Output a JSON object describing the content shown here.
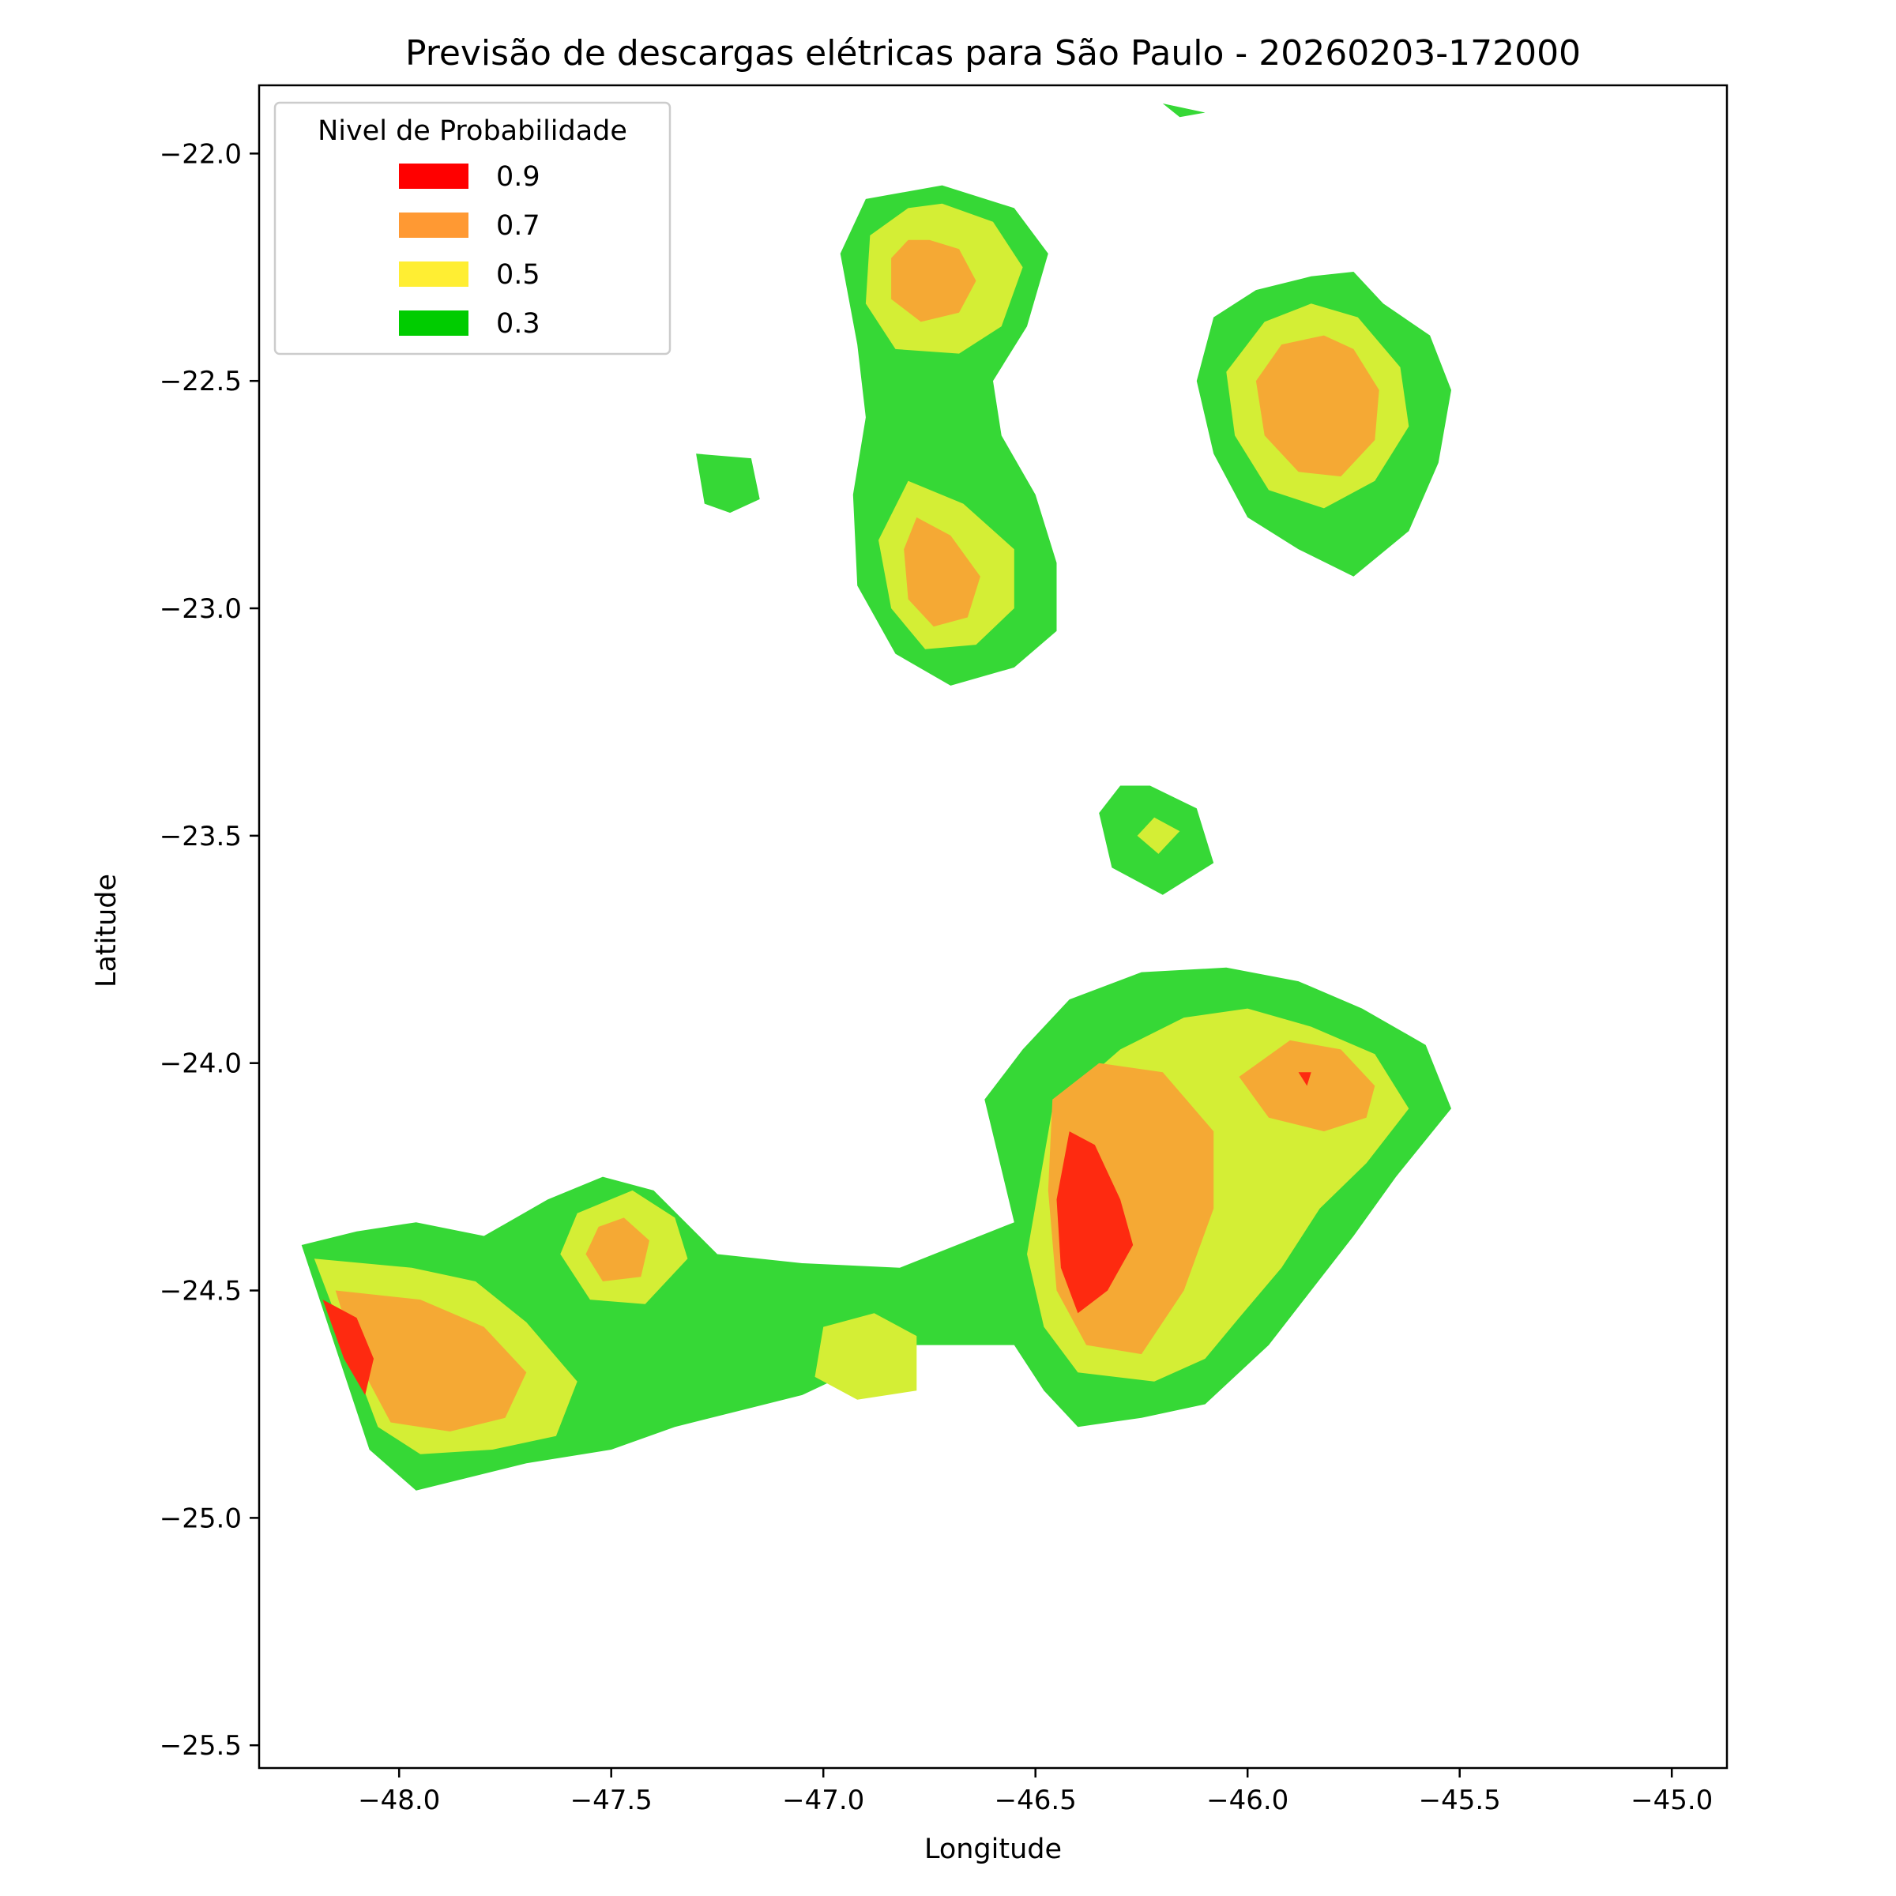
{
  "chart_data": {
    "type": "contour",
    "title": "Previsão de descargas elétricas para São Paulo - 20260203-172000",
    "xlabel": "Longitude",
    "ylabel": "Latitude",
    "xlim": [
      -48.33,
      -44.87
    ],
    "ylim": [
      -25.55,
      -21.85
    ],
    "xticks": [
      -48.0,
      -47.5,
      -47.0,
      -46.5,
      -46.0,
      -45.5,
      -45.0
    ],
    "yticks": [
      -22.0,
      -22.5,
      -23.0,
      -23.5,
      -24.0,
      -24.5,
      -25.0,
      -25.5
    ],
    "xtick_labels": [
      "−48.0",
      "−47.5",
      "−47.0",
      "−46.5",
      "−46.0",
      "−45.5",
      "−45.0"
    ],
    "ytick_labels": [
      "−22.0",
      "−22.5",
      "−23.0",
      "−23.5",
      "−24.0",
      "−24.5",
      "−25.0",
      "−25.5"
    ],
    "grid": false,
    "legend": {
      "title": "Nivel de Probabilidade",
      "placement": "top-left",
      "entries": [
        {
          "label": "0.9",
          "color": "#ff0000"
        },
        {
          "label": "0.7",
          "color": "#ff9933"
        },
        {
          "label": "0.5",
          "color": "#ffee33"
        },
        {
          "label": "0.3",
          "color": "#00cc00"
        }
      ]
    },
    "fill_colors": {
      "0.3": "#36d836",
      "0.5": "#d4ee35",
      "0.7": "#f5a934",
      "0.9": "#fe2a10"
    },
    "regions": [
      {
        "level": "0.3",
        "points": [
          [
            -46.72,
            -22.07
          ],
          [
            -46.55,
            -22.12
          ],
          [
            -46.47,
            -22.22
          ],
          [
            -46.52,
            -22.38
          ],
          [
            -46.6,
            -22.5
          ],
          [
            -46.58,
            -22.62
          ],
          [
            -46.5,
            -22.75
          ],
          [
            -46.45,
            -22.9
          ],
          [
            -46.45,
            -23.05
          ],
          [
            -46.55,
            -23.13
          ],
          [
            -46.7,
            -23.17
          ],
          [
            -46.83,
            -23.1
          ],
          [
            -46.92,
            -22.95
          ],
          [
            -46.93,
            -22.75
          ],
          [
            -46.9,
            -22.58
          ],
          [
            -46.92,
            -22.42
          ],
          [
            -46.96,
            -22.22
          ],
          [
            -46.9,
            -22.1
          ]
        ]
      },
      {
        "level": "0.5",
        "points": [
          [
            -46.72,
            -22.11
          ],
          [
            -46.6,
            -22.15
          ],
          [
            -46.53,
            -22.25
          ],
          [
            -46.58,
            -22.38
          ],
          [
            -46.68,
            -22.44
          ],
          [
            -46.83,
            -22.43
          ],
          [
            -46.9,
            -22.33
          ],
          [
            -46.89,
            -22.18
          ],
          [
            -46.8,
            -22.12
          ]
        ]
      },
      {
        "level": "0.7",
        "points": [
          [
            -46.75,
            -22.19
          ],
          [
            -46.68,
            -22.21
          ],
          [
            -46.64,
            -22.28
          ],
          [
            -46.68,
            -22.35
          ],
          [
            -46.77,
            -22.37
          ],
          [
            -46.84,
            -22.32
          ],
          [
            -46.84,
            -22.23
          ],
          [
            -46.8,
            -22.19
          ]
        ]
      },
      {
        "level": "0.5",
        "points": [
          [
            -46.8,
            -22.72
          ],
          [
            -46.67,
            -22.77
          ],
          [
            -46.55,
            -22.87
          ],
          [
            -46.55,
            -23.0
          ],
          [
            -46.64,
            -23.08
          ],
          [
            -46.76,
            -23.09
          ],
          [
            -46.84,
            -23.0
          ],
          [
            -46.87,
            -22.85
          ]
        ]
      },
      {
        "level": "0.7",
        "points": [
          [
            -46.78,
            -22.8
          ],
          [
            -46.7,
            -22.84
          ],
          [
            -46.63,
            -22.93
          ],
          [
            -46.66,
            -23.02
          ],
          [
            -46.74,
            -23.04
          ],
          [
            -46.8,
            -22.98
          ],
          [
            -46.81,
            -22.87
          ]
        ]
      },
      {
        "level": "0.3",
        "points": [
          [
            -47.3,
            -22.66
          ],
          [
            -47.17,
            -22.67
          ],
          [
            -47.15,
            -22.76
          ],
          [
            -47.22,
            -22.79
          ],
          [
            -47.28,
            -22.77
          ]
        ]
      },
      {
        "level": "0.3",
        "points": [
          [
            -46.2,
            -21.89
          ],
          [
            -46.1,
            -21.91
          ],
          [
            -46.16,
            -21.92
          ]
        ]
      },
      {
        "level": "0.3",
        "points": [
          [
            -45.85,
            -22.27
          ],
          [
            -45.75,
            -22.26
          ],
          [
            -45.68,
            -22.33
          ],
          [
            -45.57,
            -22.4
          ],
          [
            -45.52,
            -22.52
          ],
          [
            -45.55,
            -22.68
          ],
          [
            -45.62,
            -22.83
          ],
          [
            -45.75,
            -22.93
          ],
          [
            -45.88,
            -22.87
          ],
          [
            -46.0,
            -22.8
          ],
          [
            -46.08,
            -22.66
          ],
          [
            -46.12,
            -22.5
          ],
          [
            -46.08,
            -22.36
          ],
          [
            -45.98,
            -22.3
          ]
        ]
      },
      {
        "level": "0.5",
        "points": [
          [
            -45.85,
            -22.33
          ],
          [
            -45.74,
            -22.36
          ],
          [
            -45.64,
            -22.47
          ],
          [
            -45.62,
            -22.6
          ],
          [
            -45.7,
            -22.72
          ],
          [
            -45.82,
            -22.78
          ],
          [
            -45.95,
            -22.74
          ],
          [
            -46.03,
            -22.62
          ],
          [
            -46.05,
            -22.48
          ],
          [
            -45.96,
            -22.37
          ]
        ]
      },
      {
        "level": "0.7",
        "points": [
          [
            -45.82,
            -22.4
          ],
          [
            -45.75,
            -22.43
          ],
          [
            -45.69,
            -22.52
          ],
          [
            -45.7,
            -22.63
          ],
          [
            -45.78,
            -22.71
          ],
          [
            -45.88,
            -22.7
          ],
          [
            -45.96,
            -22.62
          ],
          [
            -45.98,
            -22.5
          ],
          [
            -45.92,
            -22.42
          ]
        ]
      },
      {
        "level": "0.3",
        "points": [
          [
            -46.23,
            -23.39
          ],
          [
            -46.12,
            -23.44
          ],
          [
            -46.08,
            -23.56
          ],
          [
            -46.2,
            -23.63
          ],
          [
            -46.32,
            -23.57
          ],
          [
            -46.35,
            -23.45
          ],
          [
            -46.3,
            -23.39
          ]
        ]
      },
      {
        "level": "0.5",
        "points": [
          [
            -46.22,
            -23.46
          ],
          [
            -46.16,
            -23.49
          ],
          [
            -46.21,
            -23.54
          ],
          [
            -46.26,
            -23.5
          ]
        ]
      },
      {
        "level": "0.3",
        "points": [
          [
            -46.25,
            -23.8
          ],
          [
            -46.05,
            -23.79
          ],
          [
            -45.88,
            -23.82
          ],
          [
            -45.73,
            -23.88
          ],
          [
            -45.58,
            -23.96
          ],
          [
            -45.52,
            -24.1
          ],
          [
            -45.65,
            -24.25
          ],
          [
            -45.75,
            -24.38
          ],
          [
            -45.85,
            -24.5
          ],
          [
            -45.95,
            -24.62
          ],
          [
            -46.1,
            -24.75
          ],
          [
            -46.25,
            -24.78
          ],
          [
            -46.4,
            -24.8
          ],
          [
            -46.48,
            -24.72
          ],
          [
            -46.55,
            -24.62
          ],
          [
            -46.8,
            -24.62
          ],
          [
            -47.05,
            -24.73
          ],
          [
            -47.35,
            -24.8
          ],
          [
            -47.5,
            -24.85
          ],
          [
            -47.7,
            -24.88
          ],
          [
            -47.96,
            -24.94
          ],
          [
            -48.07,
            -24.85
          ],
          [
            -48.23,
            -24.4
          ],
          [
            -48.1,
            -24.37
          ],
          [
            -47.96,
            -24.35
          ],
          [
            -47.8,
            -24.38
          ],
          [
            -47.65,
            -24.3
          ],
          [
            -47.52,
            -24.25
          ],
          [
            -47.4,
            -24.28
          ],
          [
            -47.25,
            -24.42
          ],
          [
            -47.05,
            -24.44
          ],
          [
            -46.82,
            -24.45
          ],
          [
            -46.55,
            -24.35
          ],
          [
            -46.62,
            -24.08
          ],
          [
            -46.53,
            -23.97
          ],
          [
            -46.42,
            -23.86
          ]
        ]
      },
      {
        "level": "0.5",
        "points": [
          [
            -46.0,
            -23.88
          ],
          [
            -45.85,
            -23.92
          ],
          [
            -45.7,
            -23.98
          ],
          [
            -45.62,
            -24.1
          ],
          [
            -45.72,
            -24.22
          ],
          [
            -45.83,
            -24.32
          ],
          [
            -45.92,
            -24.45
          ],
          [
            -46.02,
            -24.56
          ],
          [
            -46.1,
            -24.65
          ],
          [
            -46.22,
            -24.7
          ],
          [
            -46.4,
            -24.68
          ],
          [
            -46.48,
            -24.58
          ],
          [
            -46.52,
            -24.42
          ],
          [
            -46.46,
            -24.1
          ],
          [
            -46.3,
            -23.97
          ],
          [
            -46.15,
            -23.9
          ]
        ]
      },
      {
        "level": "0.7",
        "points": [
          [
            -46.35,
            -24.0
          ],
          [
            -46.2,
            -24.02
          ],
          [
            -46.08,
            -24.15
          ],
          [
            -46.08,
            -24.32
          ],
          [
            -46.15,
            -24.5
          ],
          [
            -46.25,
            -24.64
          ],
          [
            -46.38,
            -24.62
          ],
          [
            -46.45,
            -24.5
          ],
          [
            -46.47,
            -24.28
          ],
          [
            -46.46,
            -24.08
          ]
        ]
      },
      {
        "level": "0.7",
        "points": [
          [
            -45.9,
            -23.95
          ],
          [
            -45.78,
            -23.97
          ],
          [
            -45.7,
            -24.05
          ],
          [
            -45.72,
            -24.12
          ],
          [
            -45.82,
            -24.15
          ],
          [
            -45.95,
            -24.12
          ],
          [
            -46.02,
            -24.03
          ]
        ]
      },
      {
        "level": "0.9",
        "points": [
          [
            -46.42,
            -24.15
          ],
          [
            -46.36,
            -24.18
          ],
          [
            -46.3,
            -24.3
          ],
          [
            -46.27,
            -24.4
          ],
          [
            -46.33,
            -24.5
          ],
          [
            -46.4,
            -24.55
          ],
          [
            -46.44,
            -24.45
          ],
          [
            -46.45,
            -24.3
          ]
        ]
      },
      {
        "level": "0.9",
        "points": [
          [
            -45.88,
            -24.02
          ],
          [
            -45.85,
            -24.02
          ],
          [
            -45.86,
            -24.05
          ]
        ]
      },
      {
        "level": "0.5",
        "points": [
          [
            -47.45,
            -24.28
          ],
          [
            -47.35,
            -24.34
          ],
          [
            -47.32,
            -24.43
          ],
          [
            -47.42,
            -24.53
          ],
          [
            -47.55,
            -24.52
          ],
          [
            -47.62,
            -24.42
          ],
          [
            -47.58,
            -24.33
          ]
        ]
      },
      {
        "level": "0.7",
        "points": [
          [
            -47.47,
            -24.34
          ],
          [
            -47.41,
            -24.39
          ],
          [
            -47.43,
            -24.47
          ],
          [
            -47.52,
            -24.48
          ],
          [
            -47.56,
            -24.42
          ],
          [
            -47.53,
            -24.36
          ]
        ]
      },
      {
        "level": "0.5",
        "points": [
          [
            -46.88,
            -24.55
          ],
          [
            -46.78,
            -24.6
          ],
          [
            -46.78,
            -24.72
          ],
          [
            -46.92,
            -24.74
          ],
          [
            -47.02,
            -24.69
          ],
          [
            -47.0,
            -24.58
          ]
        ]
      },
      {
        "level": "0.5",
        "points": [
          [
            -48.2,
            -24.43
          ],
          [
            -47.97,
            -24.45
          ],
          [
            -47.82,
            -24.48
          ],
          [
            -47.7,
            -24.57
          ],
          [
            -47.58,
            -24.7
          ],
          [
            -47.63,
            -24.82
          ],
          [
            -47.78,
            -24.85
          ],
          [
            -47.95,
            -24.86
          ],
          [
            -48.05,
            -24.8
          ]
        ]
      },
      {
        "level": "0.7",
        "points": [
          [
            -48.15,
            -24.5
          ],
          [
            -47.95,
            -24.52
          ],
          [
            -47.8,
            -24.58
          ],
          [
            -47.7,
            -24.68
          ],
          [
            -47.75,
            -24.78
          ],
          [
            -47.88,
            -24.81
          ],
          [
            -48.02,
            -24.79
          ],
          [
            -48.1,
            -24.65
          ]
        ]
      },
      {
        "level": "0.9",
        "points": [
          [
            -48.18,
            -24.52
          ],
          [
            -48.1,
            -24.56
          ],
          [
            -48.06,
            -24.65
          ],
          [
            -48.08,
            -24.73
          ],
          [
            -48.13,
            -24.65
          ]
        ]
      }
    ]
  }
}
